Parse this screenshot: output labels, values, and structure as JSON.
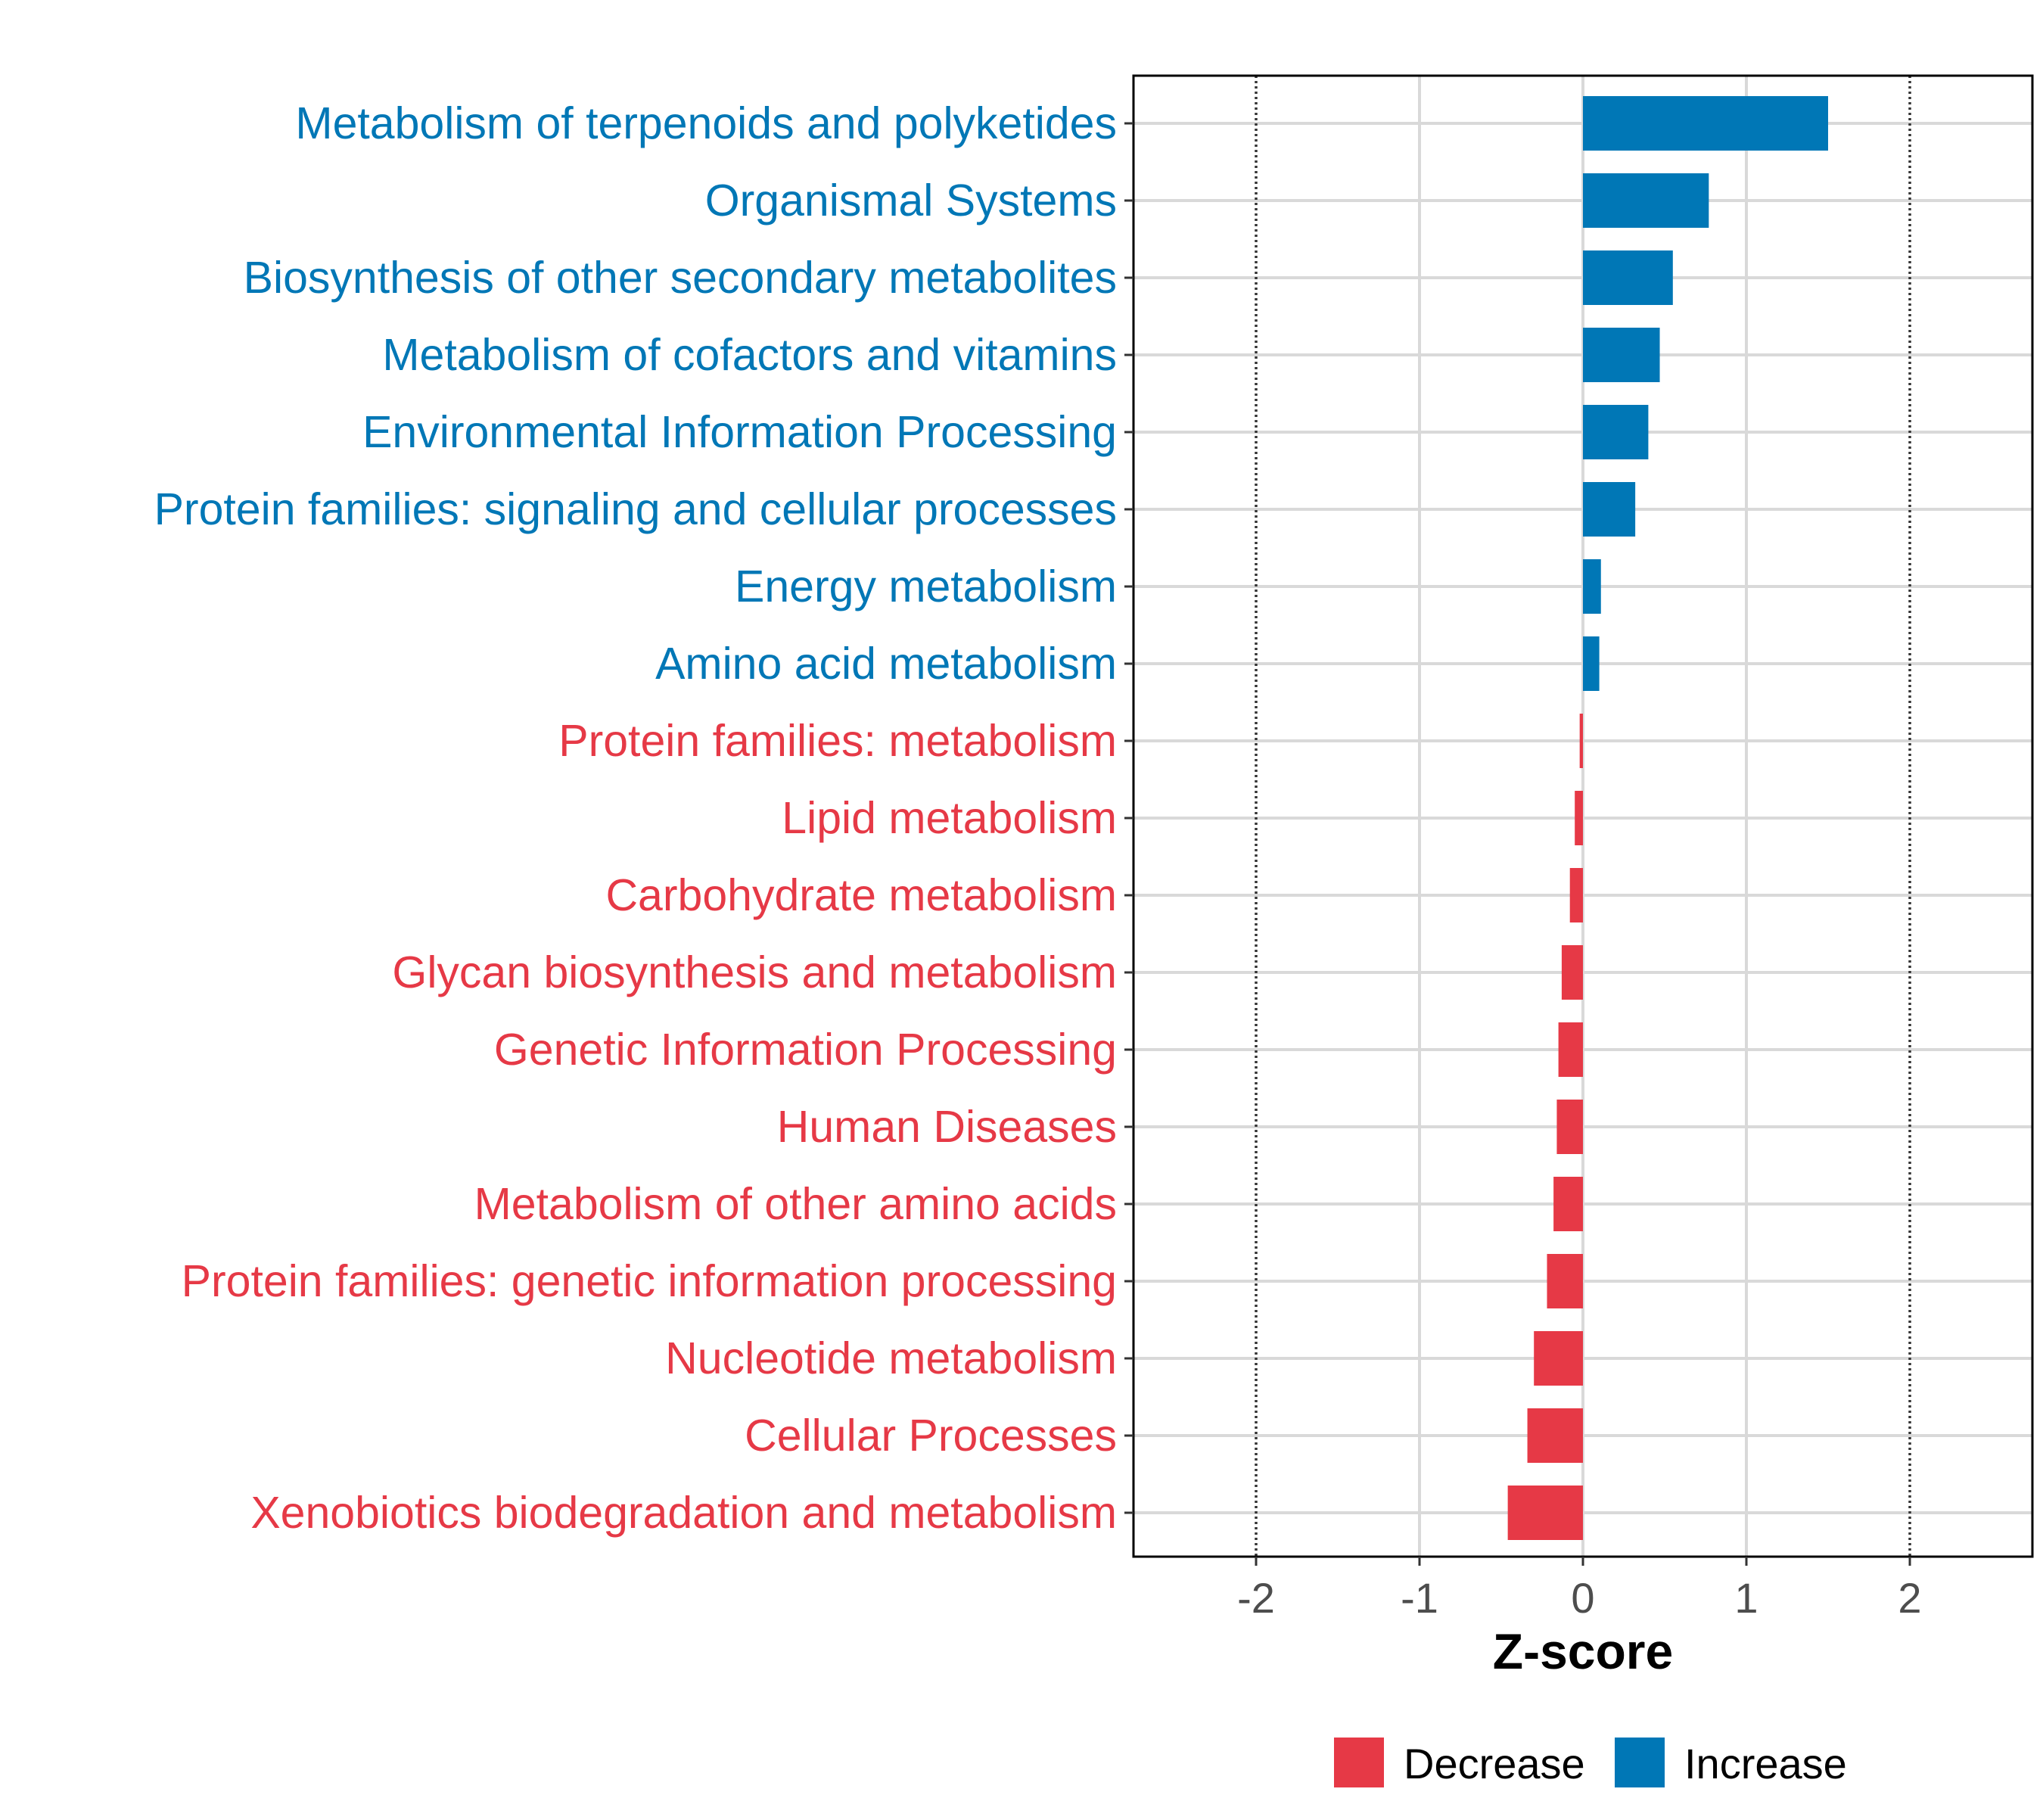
{
  "chart_data": {
    "type": "bar",
    "orientation": "horizontal",
    "xlabel": "Z-score",
    "ylabel": "",
    "xlim": [
      -2.75,
      2.75
    ],
    "xticks": [
      -2,
      -1,
      0,
      1,
      2
    ],
    "tick_labels": [
      "-2",
      "-1",
      "0",
      "1",
      "2"
    ],
    "reference_lines": [
      -2,
      2
    ],
    "grid": true,
    "legend_position": "bottom",
    "colors": {
      "Decrease": "#e63946",
      "Increase": "#0077b6"
    },
    "legend": [
      {
        "label": "Decrease",
        "color": "#e63946"
      },
      {
        "label": "Increase",
        "color": "#0077b6"
      }
    ],
    "categories": [
      "Metabolism of terpenoids and polyketides",
      "Organismal Systems",
      "Biosynthesis of other secondary metabolites",
      "Metabolism of cofactors and vitamins",
      "Environmental Information Processing",
      "Protein families: signaling and cellular processes",
      "Energy metabolism",
      "Amino acid metabolism",
      "Protein families: metabolism",
      "Lipid metabolism",
      "Carbohydrate metabolism",
      "Glycan biosynthesis and metabolism",
      "Genetic Information Processing",
      "Human Diseases",
      "Metabolism of other amino acids",
      "Protein families: genetic information processing",
      "Nucleotide metabolism",
      "Cellular Processes",
      "Xenobiotics biodegradation and metabolism"
    ],
    "values": [
      1.5,
      0.77,
      0.55,
      0.47,
      0.4,
      0.32,
      0.11,
      0.1,
      -0.02,
      -0.05,
      -0.08,
      -0.13,
      -0.15,
      -0.16,
      -0.18,
      -0.22,
      -0.3,
      -0.34,
      -0.46
    ],
    "groups": [
      "Increase",
      "Increase",
      "Increase",
      "Increase",
      "Increase",
      "Increase",
      "Increase",
      "Increase",
      "Decrease",
      "Decrease",
      "Decrease",
      "Decrease",
      "Decrease",
      "Decrease",
      "Decrease",
      "Decrease",
      "Decrease",
      "Decrease",
      "Decrease"
    ]
  }
}
